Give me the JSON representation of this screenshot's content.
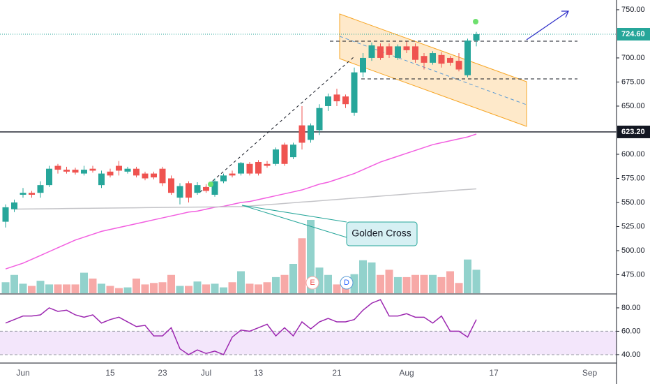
{
  "chart_data": {
    "type": "candlestick",
    "categories": [
      null,
      null,
      "Jun",
      null,
      null,
      null,
      null,
      null,
      null,
      null,
      null,
      null,
      "15",
      null,
      null,
      null,
      null,
      null,
      "23",
      null,
      null,
      null,
      null,
      "Jul",
      null,
      null,
      null,
      null,
      null,
      "13",
      null,
      null,
      null,
      null,
      null,
      null,
      null,
      null,
      "21",
      null,
      null,
      null,
      null,
      null,
      null,
      null,
      "Aug",
      null,
      null,
      null,
      null,
      null,
      null,
      null,
      null,
      null,
      "17",
      null,
      null,
      null,
      null,
      null,
      null,
      null,
      null,
      null,
      null,
      "Sep"
    ],
    "open": [
      530,
      543,
      558,
      560,
      560,
      568,
      588,
      584,
      584,
      580,
      585,
      568,
      582,
      588,
      582,
      585,
      580,
      580,
      585,
      575,
      555,
      570,
      560,
      566,
      558,
      572,
      580,
      580,
      590,
      592,
      590,
      590,
      610,
      597,
      630,
      615,
      625,
      650,
      662,
      660,
      643,
      685,
      700,
      712,
      712,
      700,
      712,
      712,
      702,
      695,
      703,
      700,
      697,
      682,
      718,
      null,
      null,
      null,
      null,
      null,
      null,
      null,
      null,
      null,
      null,
      null,
      null,
      null
    ],
    "high": [
      548,
      553,
      565,
      562,
      572,
      588,
      590,
      587,
      586,
      588,
      588,
      583,
      585,
      593,
      587,
      587,
      582,
      582,
      587,
      578,
      570,
      572,
      571,
      569,
      575,
      580,
      583,
      592,
      592,
      594,
      593,
      607,
      612,
      612,
      650,
      632,
      652,
      663,
      668,
      662,
      690,
      705,
      716,
      715,
      715,
      714,
      717,
      715,
      705,
      707,
      706,
      702,
      705,
      720,
      727,
      null,
      null,
      null,
      null,
      null,
      null,
      null,
      null,
      null,
      null,
      null,
      null,
      null
    ],
    "low": [
      524,
      540,
      555,
      555,
      555,
      566,
      580,
      580,
      579,
      578,
      581,
      565,
      576,
      578,
      580,
      576,
      573,
      574,
      567,
      558,
      548,
      550,
      558,
      560,
      556,
      570,
      576,
      578,
      578,
      578,
      586,
      588,
      588,
      595,
      605,
      612,
      620,
      645,
      650,
      648,
      640,
      680,
      697,
      698,
      700,
      698,
      705,
      695,
      688,
      693,
      690,
      692,
      686,
      680,
      712,
      null,
      null,
      null,
      null,
      null,
      null,
      null,
      null,
      null,
      null,
      null,
      null,
      null
    ],
    "close": [
      545,
      550,
      560,
      558,
      568,
      585,
      584,
      582,
      581,
      584,
      583,
      580,
      578,
      583,
      585,
      578,
      575,
      576,
      570,
      560,
      567,
      555,
      568,
      562,
      572,
      578,
      578,
      591,
      580,
      580,
      588,
      605,
      590,
      610,
      612,
      630,
      648,
      660,
      655,
      652,
      685,
      700,
      713,
      700,
      703,
      712,
      708,
      698,
      695,
      705,
      694,
      695,
      688,
      718,
      724.6,
      null,
      null,
      null,
      null,
      null,
      null,
      null,
      null,
      null,
      null,
      null,
      null,
      null
    ],
    "volume": [
      15,
      25,
      13,
      10,
      17,
      12,
      12,
      12,
      12,
      28,
      20,
      13,
      10,
      7,
      8,
      20,
      12,
      14,
      15,
      25,
      10,
      10,
      16,
      12,
      13,
      8,
      15,
      30,
      13,
      12,
      15,
      22,
      25,
      40,
      75,
      100,
      35,
      25,
      12,
      15,
      26,
      45,
      42,
      25,
      32,
      22,
      22,
      25,
      25,
      25,
      22,
      30,
      14,
      46,
      32,
      null,
      null,
      null,
      null,
      null,
      null,
      null,
      null,
      null,
      null,
      null,
      null,
      null
    ],
    "up_color": "#26a69a",
    "down_color": "#ef5350",
    "volume_up_color": "#92d2cc",
    "volume_down_color": "#f7a9a7",
    "overlays": [
      {
        "color": "#f25fe0",
        "values": [
          481,
          484,
          487,
          491,
          495,
          499,
          503,
          507,
          511,
          514,
          517,
          520,
          522,
          524,
          526,
          528,
          530,
          532,
          534,
          536,
          538,
          540,
          541,
          543,
          545,
          546,
          548,
          550,
          551,
          553,
          555,
          557,
          559,
          561,
          563,
          566,
          569,
          571,
          574,
          577,
          580,
          584,
          588,
          592,
          595,
          598,
          601,
          604,
          607,
          610,
          612,
          614,
          616,
          618,
          621,
          null,
          null,
          null,
          null,
          null,
          null,
          null,
          null,
          null,
          null,
          null,
          null,
          null
        ]
      },
      {
        "color": "#c4c4c8",
        "values": [
          null,
          543.1,
          543.2,
          543.3,
          543.4,
          543.5,
          543.6,
          543.7,
          543.8,
          543.9,
          544,
          544.1,
          544.2,
          544.3,
          544.4,
          544.5,
          544.6,
          544.7,
          544.8,
          544.9,
          545,
          545.1,
          545.2,
          545.3,
          545.4,
          545.5,
          545.6,
          545.7,
          546.3,
          547,
          547.7,
          548.3,
          549,
          549.7,
          550.4,
          551,
          551.7,
          552.4,
          553.1,
          553.8,
          554.5,
          555.2,
          555.9,
          556.6,
          557.3,
          558,
          558.7,
          559.4,
          560.1,
          560.8,
          561.5,
          562.2,
          562.9,
          563.5,
          564.1,
          null,
          null,
          null,
          null,
          null,
          null,
          null,
          null,
          null,
          null,
          null,
          null,
          null
        ]
      }
    ],
    "ylim": [
      455.8,
      760.1
    ],
    "yticks": [
      {
        "value": 750,
        "label": "750.00"
      },
      {
        "value": 700,
        "label": "700.00"
      },
      {
        "value": 675,
        "label": "675.00"
      },
      {
        "value": 650,
        "label": "650.00"
      },
      {
        "value": 600,
        "label": "600.00"
      },
      {
        "value": 575,
        "label": "575.00"
      },
      {
        "value": 550,
        "label": "550.00"
      },
      {
        "value": 525,
        "label": "525.00"
      },
      {
        "value": 500,
        "label": "500.00"
      },
      {
        "value": 475,
        "label": "475.00"
      }
    ],
    "last_price": {
      "value": 724.6,
      "label": "724.60",
      "color": "#26a69a"
    },
    "level": {
      "value": 623.2,
      "label": "623.20",
      "color": "#131722"
    },
    "rsi": {
      "color": "#9c27b0",
      "values": [
        67,
        70,
        73,
        73,
        74,
        80,
        77,
        78,
        74,
        72,
        74,
        67,
        70,
        72,
        68,
        64,
        65,
        56,
        56,
        63,
        45,
        40,
        44,
        41,
        43,
        40,
        55,
        61,
        60,
        63,
        66,
        56,
        63,
        56,
        68,
        62,
        68,
        71,
        68,
        68,
        70,
        78,
        84,
        87,
        73,
        73,
        75,
        72,
        72,
        67,
        73,
        60,
        60,
        55,
        70,
        null,
        null,
        null,
        null,
        null,
        null,
        null,
        null,
        null,
        null,
        null,
        null,
        null
      ],
      "ylim": [
        32.8,
        91.3
      ],
      "yticks": [
        {
          "value": 80,
          "label": "80.00"
        },
        {
          "value": 60,
          "label": "60.00"
        },
        {
          "value": 40,
          "label": "40.00"
        }
      ],
      "band": [
        40,
        60
      ],
      "band_color": "#f3e6fb"
    },
    "annotations": {
      "golden_cross": "Golden Cross",
      "events": [
        "E",
        "D"
      ]
    }
  }
}
